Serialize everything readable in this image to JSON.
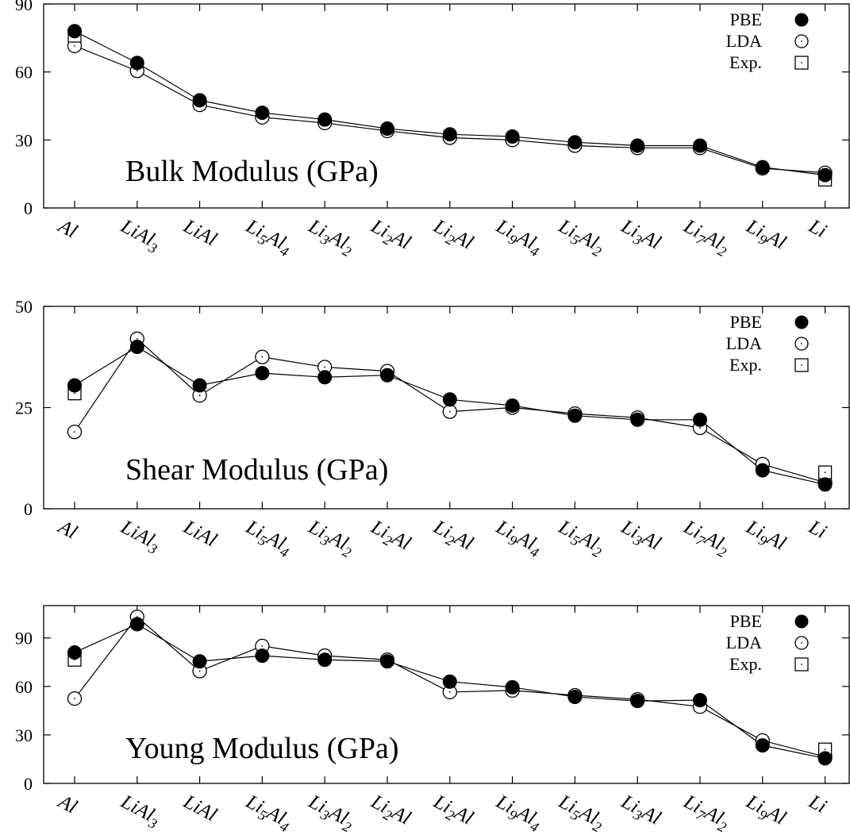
{
  "chart_data": [
    {
      "type": "line",
      "title": "Bulk Modulus (GPa)",
      "xlabel": "",
      "ylabel": "",
      "ylim": [
        0,
        90
      ],
      "yticks": [
        "0",
        "30",
        "60",
        "90"
      ],
      "grid": false,
      "legend_position": "top-right",
      "categories": [
        {
          "base": "Al",
          "parts": [
            [
              "Al",
              ""
            ]
          ]
        },
        {
          "base": "LiAl3",
          "parts": [
            [
              "LiAl",
              ""
            ],
            [
              "3",
              "sub"
            ]
          ]
        },
        {
          "base": "LiAl",
          "parts": [
            [
              "LiAl",
              ""
            ]
          ]
        },
        {
          "base": "Li5Al4",
          "parts": [
            [
              "Li",
              ""
            ],
            [
              "5",
              "sub"
            ],
            [
              "Al",
              ""
            ],
            [
              "4",
              "sub"
            ]
          ]
        },
        {
          "base": "Li3Al2",
          "parts": [
            [
              "Li",
              ""
            ],
            [
              "3",
              "sub"
            ],
            [
              "Al",
              ""
            ],
            [
              "2",
              "sub"
            ]
          ]
        },
        {
          "base": "Li2Al",
          "parts": [
            [
              "Li",
              ""
            ],
            [
              "2",
              "sub"
            ],
            [
              "Al",
              ""
            ]
          ]
        },
        {
          "base": "Li2Al",
          "parts": [
            [
              "Li",
              ""
            ],
            [
              "2",
              "sub"
            ],
            [
              "Al",
              ""
            ]
          ]
        },
        {
          "base": "Li9Al4",
          "parts": [
            [
              "Li",
              ""
            ],
            [
              "9",
              "sub"
            ],
            [
              "Al",
              ""
            ],
            [
              "4",
              "sub"
            ]
          ]
        },
        {
          "base": "Li5Al2",
          "parts": [
            [
              "Li",
              ""
            ],
            [
              "5",
              "sub"
            ],
            [
              "Al",
              ""
            ],
            [
              "2",
              "sub"
            ]
          ]
        },
        {
          "base": "Li3Al",
          "parts": [
            [
              "Li",
              ""
            ],
            [
              "3",
              "sub"
            ],
            [
              "Al",
              ""
            ]
          ]
        },
        {
          "base": "Li7Al2",
          "parts": [
            [
              "Li",
              ""
            ],
            [
              "7",
              "sub"
            ],
            [
              "Al",
              ""
            ],
            [
              "2",
              "sub"
            ]
          ]
        },
        {
          "base": "Li9Al",
          "parts": [
            [
              "Li",
              ""
            ],
            [
              "9",
              "sub"
            ],
            [
              "Al",
              ""
            ]
          ]
        },
        {
          "base": "Li",
          "parts": [
            [
              "Li",
              ""
            ]
          ]
        }
      ],
      "series": [
        {
          "name": "PBE",
          "marker": "filled-circle",
          "values": [
            78,
            64,
            47.5,
            42,
            39,
            35,
            32.5,
            31.5,
            29,
            27.5,
            27.5,
            18,
            14.5
          ]
        },
        {
          "name": "LDA",
          "marker": "open-circle",
          "values": [
            71.5,
            60.5,
            45.5,
            40,
            37.5,
            34,
            31,
            30,
            27.5,
            26.5,
            26.5,
            17.5,
            15.5
          ]
        },
        {
          "name": "Exp.",
          "marker": "open-square",
          "values": [
            76,
            null,
            null,
            null,
            null,
            null,
            null,
            null,
            null,
            null,
            null,
            null,
            12.5
          ]
        }
      ]
    },
    {
      "type": "line",
      "title": "Shear Modulus (GPa)",
      "xlabel": "",
      "ylabel": "",
      "ylim": [
        0,
        50
      ],
      "yticks": [
        "0",
        "25",
        "50"
      ],
      "grid": false,
      "legend_position": "top-right",
      "categories": [
        {
          "base": "Al",
          "parts": [
            [
              "Al",
              ""
            ]
          ]
        },
        {
          "base": "LiAl3",
          "parts": [
            [
              "LiAl",
              ""
            ],
            [
              "3",
              "sub"
            ]
          ]
        },
        {
          "base": "LiAl",
          "parts": [
            [
              "LiAl",
              ""
            ]
          ]
        },
        {
          "base": "Li5Al4",
          "parts": [
            [
              "Li",
              ""
            ],
            [
              "5",
              "sub"
            ],
            [
              "Al",
              ""
            ],
            [
              "4",
              "sub"
            ]
          ]
        },
        {
          "base": "Li3Al2",
          "parts": [
            [
              "Li",
              ""
            ],
            [
              "3",
              "sub"
            ],
            [
              "Al",
              ""
            ],
            [
              "2",
              "sub"
            ]
          ]
        },
        {
          "base": "Li2Al",
          "parts": [
            [
              "Li",
              ""
            ],
            [
              "2",
              "sub"
            ],
            [
              "Al",
              ""
            ]
          ]
        },
        {
          "base": "Li2Al",
          "parts": [
            [
              "Li",
              ""
            ],
            [
              "2",
              "sub"
            ],
            [
              "Al",
              ""
            ]
          ]
        },
        {
          "base": "Li9Al4",
          "parts": [
            [
              "Li",
              ""
            ],
            [
              "9",
              "sub"
            ],
            [
              "Al",
              ""
            ],
            [
              "4",
              "sub"
            ]
          ]
        },
        {
          "base": "Li5Al2",
          "parts": [
            [
              "Li",
              ""
            ],
            [
              "5",
              "sub"
            ],
            [
              "Al",
              ""
            ],
            [
              "2",
              "sub"
            ]
          ]
        },
        {
          "base": "Li3Al",
          "parts": [
            [
              "Li",
              ""
            ],
            [
              "3",
              "sub"
            ],
            [
              "Al",
              ""
            ]
          ]
        },
        {
          "base": "Li7Al2",
          "parts": [
            [
              "Li",
              ""
            ],
            [
              "7",
              "sub"
            ],
            [
              "Al",
              ""
            ],
            [
              "2",
              "sub"
            ]
          ]
        },
        {
          "base": "Li9Al",
          "parts": [
            [
              "Li",
              ""
            ],
            [
              "9",
              "sub"
            ],
            [
              "Al",
              ""
            ]
          ]
        },
        {
          "base": "Li",
          "parts": [
            [
              "Li",
              ""
            ]
          ]
        }
      ],
      "series": [
        {
          "name": "PBE",
          "marker": "filled-circle",
          "values": [
            30.5,
            40,
            30.5,
            33.5,
            32.5,
            33,
            27,
            25.5,
            23,
            22,
            22,
            9.5,
            6
          ]
        },
        {
          "name": "LDA",
          "marker": "open-circle",
          "values": [
            19,
            42,
            28,
            37.5,
            35,
            34,
            24,
            25,
            23.5,
            22.5,
            20,
            11,
            6.5
          ]
        },
        {
          "name": "Exp.",
          "marker": "open-square",
          "values": [
            28.5,
            null,
            null,
            null,
            null,
            null,
            null,
            null,
            null,
            null,
            null,
            null,
            9
          ]
        }
      ]
    },
    {
      "type": "line",
      "title": "Young Modulus (GPa)",
      "xlabel": "",
      "ylabel": "",
      "ylim": [
        0,
        110
      ],
      "yticks": [
        "0",
        "30",
        "60",
        "90"
      ],
      "grid": false,
      "legend_position": "top-right",
      "categories": [
        {
          "base": "Al",
          "parts": [
            [
              "Al",
              ""
            ]
          ]
        },
        {
          "base": "LiAl3",
          "parts": [
            [
              "LiAl",
              ""
            ],
            [
              "3",
              "sub"
            ]
          ]
        },
        {
          "base": "LiAl",
          "parts": [
            [
              "LiAl",
              ""
            ]
          ]
        },
        {
          "base": "Li5Al4",
          "parts": [
            [
              "Li",
              ""
            ],
            [
              "5",
              "sub"
            ],
            [
              "Al",
              ""
            ],
            [
              "4",
              "sub"
            ]
          ]
        },
        {
          "base": "Li3Al2",
          "parts": [
            [
              "Li",
              ""
            ],
            [
              "3",
              "sub"
            ],
            [
              "Al",
              ""
            ],
            [
              "2",
              "sub"
            ]
          ]
        },
        {
          "base": "Li2Al",
          "parts": [
            [
              "Li",
              ""
            ],
            [
              "2",
              "sub"
            ],
            [
              "Al",
              ""
            ]
          ]
        },
        {
          "base": "Li2Al",
          "parts": [
            [
              "Li",
              ""
            ],
            [
              "2",
              "sub"
            ],
            [
              "Al",
              ""
            ]
          ]
        },
        {
          "base": "Li9Al4",
          "parts": [
            [
              "Li",
              ""
            ],
            [
              "9",
              "sub"
            ],
            [
              "Al",
              ""
            ],
            [
              "4",
              "sub"
            ]
          ]
        },
        {
          "base": "Li5Al2",
          "parts": [
            [
              "Li",
              ""
            ],
            [
              "5",
              "sub"
            ],
            [
              "Al",
              ""
            ],
            [
              "2",
              "sub"
            ]
          ]
        },
        {
          "base": "Li3Al",
          "parts": [
            [
              "Li",
              ""
            ],
            [
              "3",
              "sub"
            ],
            [
              "Al",
              ""
            ]
          ]
        },
        {
          "base": "Li7Al2",
          "parts": [
            [
              "Li",
              ""
            ],
            [
              "7",
              "sub"
            ],
            [
              "Al",
              ""
            ],
            [
              "2",
              "sub"
            ]
          ]
        },
        {
          "base": "Li9Al",
          "parts": [
            [
              "Li",
              ""
            ],
            [
              "9",
              "sub"
            ],
            [
              "Al",
              ""
            ]
          ]
        },
        {
          "base": "Li",
          "parts": [
            [
              "Li",
              ""
            ]
          ]
        }
      ],
      "series": [
        {
          "name": "PBE",
          "marker": "filled-circle",
          "values": [
            81,
            98.5,
            75.5,
            79,
            76.5,
            75.5,
            63,
            59.5,
            53.5,
            51,
            51.5,
            23.5,
            15.5
          ]
        },
        {
          "name": "LDA",
          "marker": "open-circle",
          "values": [
            52.5,
            103,
            69.5,
            85,
            79,
            76.5,
            56.5,
            57.5,
            54.5,
            52,
            47.5,
            26.5,
            16.5
          ]
        },
        {
          "name": "Exp.",
          "marker": "open-square",
          "values": [
            76.5,
            null,
            null,
            null,
            null,
            null,
            null,
            null,
            null,
            null,
            null,
            null,
            21
          ]
        }
      ]
    }
  ]
}
